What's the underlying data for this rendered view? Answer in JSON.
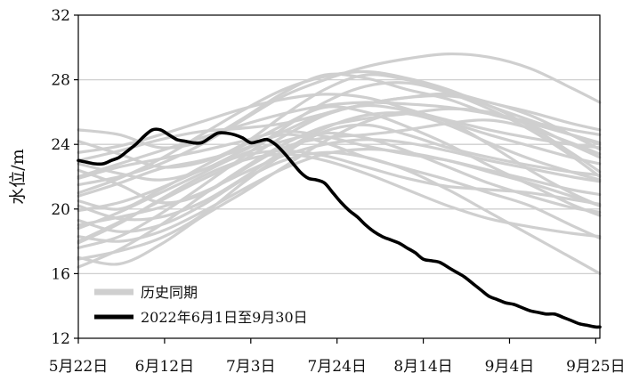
{
  "chart_data": {
    "type": "line",
    "xlabel": "",
    "ylabel": "水位/m",
    "ylim": [
      12,
      32
    ],
    "yticks": [
      12,
      16,
      20,
      24,
      28,
      32
    ],
    "xlim": [
      0,
      127
    ],
    "xticks": [
      {
        "label": "5月22日",
        "day": 0
      },
      {
        "label": "6月12日",
        "day": 21
      },
      {
        "label": "7月3日",
        "day": 42
      },
      {
        "label": "7月24日",
        "day": 63
      },
      {
        "label": "8月14日",
        "day": 84
      },
      {
        "label": "9月4日",
        "day": 105
      },
      {
        "label": "9月25日",
        "day": 126
      }
    ],
    "grid": "horizontal",
    "legend": {
      "placement": "bottom-left"
    },
    "series": [
      {
        "name": "历史同期",
        "color": "#cfcfcf",
        "multi_line": true,
        "lines": [
          {
            "x": [
              0,
              10,
              20,
              30,
              40,
              50,
              60,
              70,
              80,
              90,
              100,
              110,
              120,
              127
            ],
            "y": [
              24.9,
              24.6,
              23.8,
              24.2,
              25.6,
              27.2,
              28.3,
              28.1,
              27.4,
              26.8,
              25.9,
              25.3,
              24.6,
              24.1
            ]
          },
          {
            "x": [
              0,
              10,
              20,
              30,
              40,
              50,
              60,
              70,
              80,
              90,
              100,
              110,
              120,
              127
            ],
            "y": [
              21.5,
              22.0,
              22.8,
              24.0,
              25.5,
              27.0,
              28.0,
              28.8,
              29.3,
              29.6,
              29.4,
              28.7,
              27.5,
              26.6
            ]
          },
          {
            "x": [
              0,
              10,
              20,
              30,
              40,
              50,
              60,
              70,
              80,
              90,
              100,
              110,
              120,
              127
            ],
            "y": [
              16.4,
              17.5,
              19.0,
              20.8,
              22.5,
              24.0,
              25.1,
              25.6,
              25.9,
              26.2,
              26.0,
              25.2,
              24.0,
              23.2
            ]
          },
          {
            "x": [
              0,
              10,
              20,
              30,
              40,
              50,
              60,
              70,
              80,
              90,
              100,
              110,
              120,
              127
            ],
            "y": [
              18.0,
              19.2,
              20.5,
              21.8,
              23.0,
              24.5,
              25.8,
              26.5,
              26.9,
              27.1,
              26.4,
              25.1,
              23.5,
              22.3
            ]
          },
          {
            "x": [
              0,
              10,
              20,
              30,
              40,
              50,
              60,
              70,
              80,
              90,
              100,
              110,
              120,
              127
            ],
            "y": [
              20.5,
              20.0,
              21.2,
              22.6,
              23.9,
              25.2,
              26.3,
              26.0,
              25.1,
              24.0,
              22.7,
              21.5,
              20.3,
              19.6
            ]
          },
          {
            "x": [
              0,
              10,
              20,
              30,
              40,
              50,
              60,
              70,
              80,
              90,
              100,
              110,
              120,
              127
            ],
            "y": [
              22.8,
              22.2,
              21.8,
              22.4,
              23.6,
              24.6,
              24.1,
              23.2,
              22.5,
              21.8,
              21.0,
              20.2,
              19.0,
              18.2
            ]
          },
          {
            "x": [
              0,
              10,
              20,
              30,
              40,
              50,
              60,
              70,
              80,
              90,
              100,
              110,
              120,
              127
            ],
            "y": [
              17.6,
              18.3,
              19.7,
              21.4,
              23.2,
              25.0,
              26.6,
              27.6,
              27.8,
              27.2,
              26.2,
              24.9,
              23.3,
              22.0
            ]
          },
          {
            "x": [
              0,
              10,
              20,
              30,
              40,
              50,
              60,
              70,
              80,
              90,
              100,
              110,
              120,
              127
            ],
            "y": [
              19.3,
              18.6,
              19.0,
              20.2,
              21.8,
              23.0,
              23.5,
              23.2,
              22.4,
              21.2,
              19.8,
              18.4,
              17.0,
              16.0
            ]
          },
          {
            "x": [
              0,
              10,
              20,
              30,
              40,
              50,
              60,
              70,
              80,
              90,
              100,
              110,
              120,
              127
            ],
            "y": [
              23.5,
              23.9,
              24.6,
              25.4,
              26.2,
              26.8,
              27.1,
              26.9,
              26.2,
              25.4,
              24.6,
              23.9,
              23.2,
              22.8
            ]
          },
          {
            "x": [
              0,
              10,
              20,
              30,
              40,
              50,
              60,
              70,
              80,
              90,
              100,
              110,
              120,
              127
            ],
            "y": [
              20.8,
              21.6,
              22.5,
              23.0,
              23.7,
              24.8,
              25.9,
              26.4,
              26.1,
              25.5,
              24.9,
              24.4,
              24.0,
              23.8
            ]
          },
          {
            "x": [
              0,
              10,
              20,
              30,
              40,
              50,
              60,
              70,
              80,
              90,
              100,
              110,
              120,
              127
            ],
            "y": [
              17.0,
              16.6,
              17.8,
              19.5,
              21.0,
              22.6,
              24.2,
              25.4,
              26.0,
              25.4,
              24.0,
              22.4,
              21.0,
              20.2
            ]
          },
          {
            "x": [
              0,
              10,
              20,
              30,
              40,
              50,
              60,
              70,
              80,
              90,
              100,
              110,
              120,
              127
            ],
            "y": [
              21.9,
              22.6,
              23.1,
              23.6,
              24.2,
              24.8,
              24.5,
              23.9,
              23.4,
              23.0,
              22.4,
              21.8,
              21.2,
              20.9
            ]
          },
          {
            "x": [
              0,
              10,
              20,
              30,
              40,
              50,
              60,
              70,
              80,
              90,
              100,
              110,
              120,
              127
            ],
            "y": [
              18.8,
              19.8,
              21.0,
              22.2,
              23.4,
              24.2,
              24.7,
              24.4,
              23.6,
              22.6,
              21.6,
              20.8,
              20.1,
              19.8
            ]
          },
          {
            "x": [
              0,
              10,
              20,
              30,
              40,
              50,
              60,
              70,
              80,
              90,
              100,
              110,
              120,
              127
            ],
            "y": [
              24.2,
              23.4,
              22.6,
              22.9,
              24.0,
              25.8,
              27.4,
              28.3,
              28.0,
              27.3,
              26.6,
              26.0,
              25.3,
              24.9
            ]
          },
          {
            "x": [
              0,
              10,
              20,
              30,
              40,
              50,
              60,
              70,
              80,
              90,
              100,
              110,
              120,
              127
            ],
            "y": [
              16.9,
              17.4,
              18.2,
              19.6,
              21.6,
              23.4,
              24.8,
              25.2,
              24.6,
              23.8,
              23.2,
              22.7,
              22.3,
              22.1
            ]
          },
          {
            "x": [
              0,
              10,
              20,
              30,
              40,
              50,
              60,
              70,
              80,
              90,
              100,
              110,
              120,
              127
            ],
            "y": [
              22.4,
              21.5,
              20.4,
              20.9,
              22.4,
              23.8,
              24.4,
              24.6,
              24.9,
              25.3,
              25.5,
              25.0,
              24.1,
              23.4
            ]
          },
          {
            "x": [
              0,
              10,
              20,
              30,
              40,
              50,
              60,
              70,
              80,
              90,
              100,
              110,
              120,
              127
            ],
            "y": [
              19.9,
              20.4,
              21.3,
              22.4,
              23.3,
              23.6,
              23.3,
              22.6,
              21.9,
              21.4,
              21.2,
              21.0,
              20.6,
              20.3
            ]
          },
          {
            "x": [
              0,
              10,
              20,
              30,
              40,
              50,
              60,
              70,
              80,
              90,
              100,
              110,
              120,
              127
            ],
            "y": [
              21.0,
              21.9,
              23.1,
              24.6,
              26.1,
              27.4,
              28.2,
              28.5,
              28.1,
              27.4,
              26.4,
              25.5,
              24.6,
              24.0
            ]
          },
          {
            "x": [
              0,
              10,
              20,
              30,
              40,
              50,
              60,
              70,
              80,
              90,
              100,
              110,
              120,
              127
            ],
            "y": [
              18.3,
              18.0,
              18.6,
              19.8,
              21.2,
              22.5,
              23.4,
              23.7,
              23.5,
              23.0,
              22.3,
              21.6,
              20.8,
              20.2
            ]
          },
          {
            "x": [
              0,
              10,
              20,
              30,
              40,
              50,
              60,
              70,
              80,
              90,
              100,
              110,
              120,
              127
            ],
            "y": [
              23.0,
              23.6,
              24.3,
              24.8,
              25.0,
              25.3,
              25.9,
              26.5,
              26.9,
              27.0,
              26.6,
              25.8,
              24.6,
              23.7
            ]
          },
          {
            "x": [
              0,
              10,
              20,
              30,
              40,
              50,
              60,
              70,
              80,
              90,
              100,
              110,
              120,
              127
            ],
            "y": [
              20.2,
              19.4,
              19.5,
              20.4,
              21.9,
              23.6,
              25.0,
              25.8,
              25.9,
              25.2,
              24.1,
              23.1,
              22.3,
              21.8
            ]
          },
          {
            "x": [
              0,
              10,
              20,
              30,
              40,
              50,
              60,
              70,
              80,
              90,
              100,
              110,
              120,
              127
            ],
            "y": [
              17.9,
              19.1,
              20.6,
              22.0,
              23.0,
              23.4,
              23.0,
              22.2,
              21.2,
              20.2,
              19.4,
              18.9,
              18.5,
              18.3
            ]
          },
          {
            "x": [
              0,
              10,
              20,
              30,
              40,
              50,
              60,
              70,
              80,
              90,
              100,
              110,
              120,
              127
            ],
            "y": [
              22.0,
              22.8,
              23.6,
              24.4,
              25.2,
              25.9,
              26.4,
              26.6,
              26.5,
              26.3,
              25.9,
              25.4,
              24.9,
              24.6
            ]
          },
          {
            "x": [
              0,
              10,
              20,
              30,
              40,
              50,
              60,
              70,
              80,
              90,
              100,
              110,
              120,
              127
            ],
            "y": [
              19.0,
              19.5,
              20.1,
              21.0,
              22.2,
              23.3,
              24.0,
              24.3,
              24.1,
              23.6,
              23.0,
              22.5,
              22.0,
              21.7
            ]
          }
        ]
      },
      {
        "name": "2022年6月1日至9月30日",
        "color": "#000000",
        "x": [
          0,
          2,
          4,
          6,
          8,
          10,
          12,
          14,
          16,
          18,
          20,
          22,
          24,
          26,
          28,
          30,
          32,
          34,
          36,
          38,
          40,
          42,
          44,
          46,
          48,
          50,
          52,
          54,
          56,
          58,
          60,
          62,
          64,
          66,
          68,
          70,
          72,
          74,
          76,
          78,
          80,
          82,
          84,
          86,
          88,
          90,
          92,
          94,
          96,
          98,
          100,
          102,
          104,
          106,
          108,
          110,
          112,
          114,
          116,
          118,
          120,
          122,
          124,
          126,
          127
        ],
        "y": [
          23.0,
          22.9,
          22.8,
          22.8,
          23.0,
          23.2,
          23.6,
          24.0,
          24.5,
          24.9,
          24.9,
          24.6,
          24.3,
          24.2,
          24.1,
          24.1,
          24.4,
          24.7,
          24.7,
          24.6,
          24.4,
          24.1,
          24.2,
          24.3,
          24.0,
          23.5,
          22.9,
          22.3,
          21.9,
          21.8,
          21.6,
          21.0,
          20.4,
          19.9,
          19.5,
          19.0,
          18.6,
          18.3,
          18.1,
          17.9,
          17.6,
          17.3,
          16.9,
          16.8,
          16.7,
          16.4,
          16.1,
          15.8,
          15.4,
          15.0,
          14.6,
          14.4,
          14.2,
          14.1,
          13.9,
          13.7,
          13.6,
          13.5,
          13.5,
          13.3,
          13.1,
          12.9,
          12.8,
          12.7,
          12.7
        ]
      }
    ]
  }
}
